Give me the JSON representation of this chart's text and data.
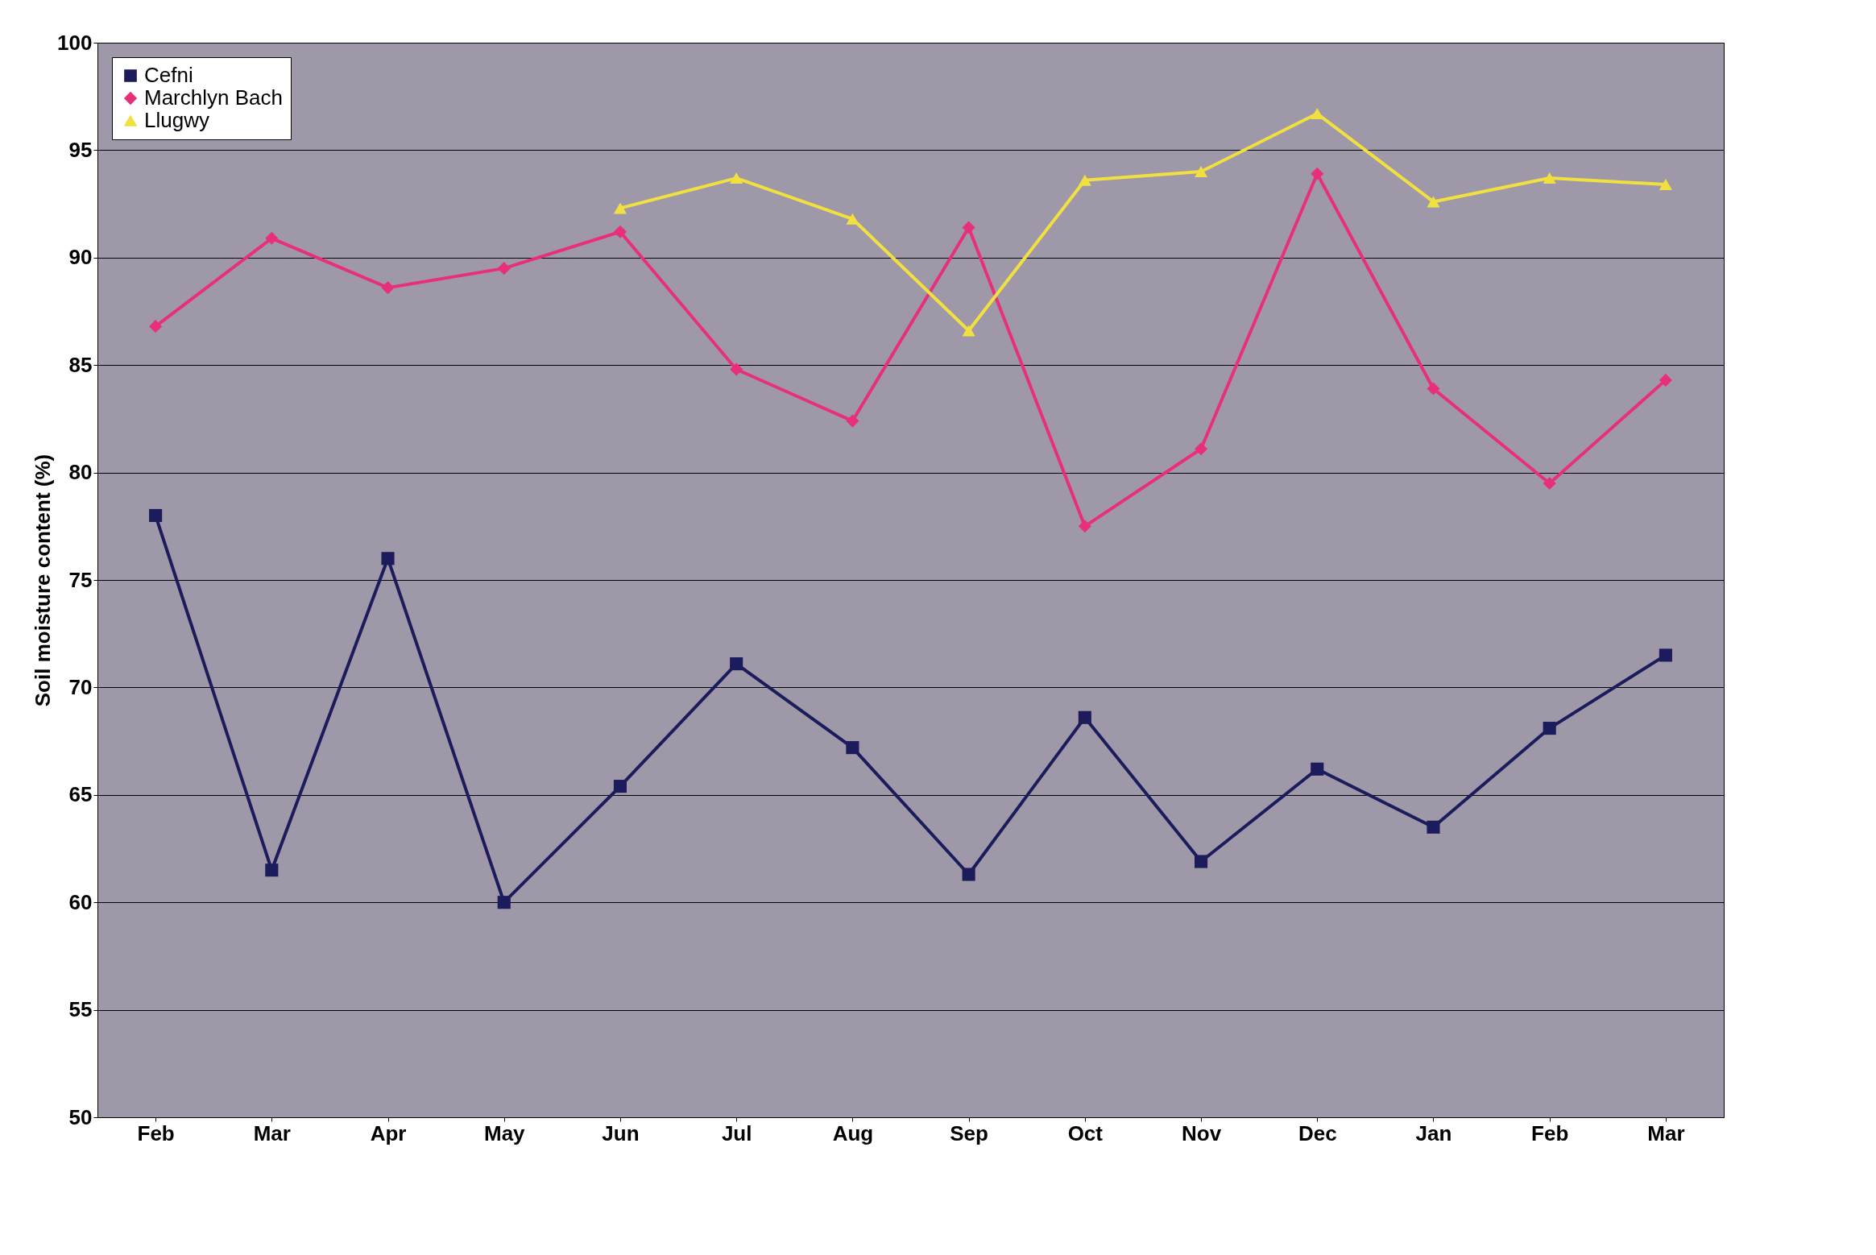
{
  "chart_data": {
    "type": "line",
    "ylabel": "Soil moisture content (%)",
    "categories": [
      "Feb",
      "Mar",
      "Apr",
      "May",
      "Jun",
      "Jul",
      "Aug",
      "Sep",
      "Oct",
      "Nov",
      "Dec",
      "Jan",
      "Feb",
      "Mar"
    ],
    "series": [
      {
        "name": "Cefni",
        "color": "#1c1c5c",
        "marker": "square",
        "values": [
          78,
          61.5,
          76,
          60,
          65.4,
          71.1,
          67.2,
          61.3,
          68.6,
          61.9,
          66.2,
          63.5,
          68.1,
          71.5
        ]
      },
      {
        "name": "Marchlyn Bach",
        "color": "#e8307a",
        "marker": "diamond",
        "values": [
          86.8,
          90.9,
          88.6,
          89.5,
          91.2,
          84.8,
          82.4,
          91.4,
          77.5,
          81.1,
          93.9,
          83.9,
          79.5,
          84.3
        ]
      },
      {
        "name": "Llugwy",
        "color": "#f0e040",
        "marker": "triangle",
        "values": [
          null,
          null,
          null,
          null,
          92.3,
          93.7,
          91.8,
          86.6,
          93.6,
          94,
          96.7,
          92.6,
          93.7,
          93.4
        ]
      }
    ],
    "ylim": [
      50,
      100
    ],
    "yticks": [
      50,
      55,
      60,
      65,
      70,
      75,
      80,
      85,
      90,
      95,
      100
    ],
    "grid": "y",
    "legend": "top left",
    "line_style": "solid"
  }
}
